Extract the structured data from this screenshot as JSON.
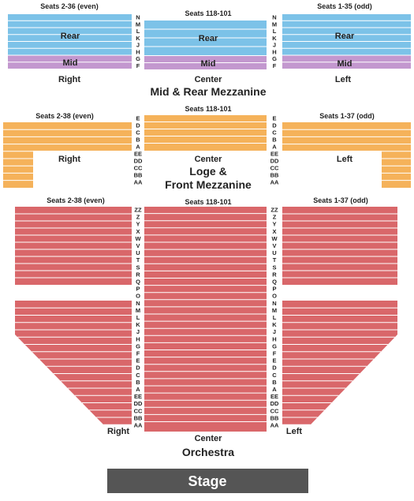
{
  "colors": {
    "upper_blue": "#7cc2e8",
    "mid_purple": "#c398cf",
    "loge_orange": "#f5b25a",
    "orchestra_red": "#d9676a",
    "stage": "#555555",
    "row_line": "#ffffff"
  },
  "mezzanine": {
    "title": "Mid & Rear Mezzanine",
    "right": {
      "seats": "Seats 2-36 (even)",
      "side_label": "Right"
    },
    "center": {
      "seats": "Seats 118-101",
      "side_label": "Center"
    },
    "left": {
      "seats": "Seats 1-35 (odd)",
      "side_label": "Left"
    },
    "rear_label": "Rear",
    "mid_label": "Mid",
    "rows": [
      "N",
      "M",
      "L",
      "K",
      "J",
      "H",
      "G",
      "F"
    ]
  },
  "loge": {
    "title_line1": "Loge &",
    "title_line2": "Front Mezzanine",
    "right": {
      "seats": "Seats 2-38 (even)",
      "side_label": "Right"
    },
    "center": {
      "seats": "Seats 118-101",
      "side_label": "Center"
    },
    "left": {
      "seats": "Seats 1-37 (odd)",
      "side_label": "Left"
    },
    "rows": [
      "E",
      "D",
      "C",
      "B",
      "A",
      "EE",
      "DD",
      "CC",
      "BB",
      "AA"
    ]
  },
  "orchestra": {
    "title": "Orchestra",
    "right": {
      "seats": "Seats 2-38 (even)",
      "side_label": "Right"
    },
    "center": {
      "seats": "Seats 118-101",
      "side_label": "Center"
    },
    "left": {
      "seats": "Seats 1-37 (odd)",
      "side_label": "Left"
    },
    "rows": [
      "ZZ",
      "Z",
      "Y",
      "X",
      "W",
      "V",
      "U",
      "T",
      "S",
      "R",
      "Q",
      "P",
      "O",
      "N",
      "M",
      "L",
      "K",
      "J",
      "H",
      "G",
      "F",
      "E",
      "D",
      "C",
      "B",
      "A",
      "EE",
      "DD",
      "CC",
      "BB",
      "AA"
    ]
  },
  "stage": {
    "label": "Stage"
  }
}
